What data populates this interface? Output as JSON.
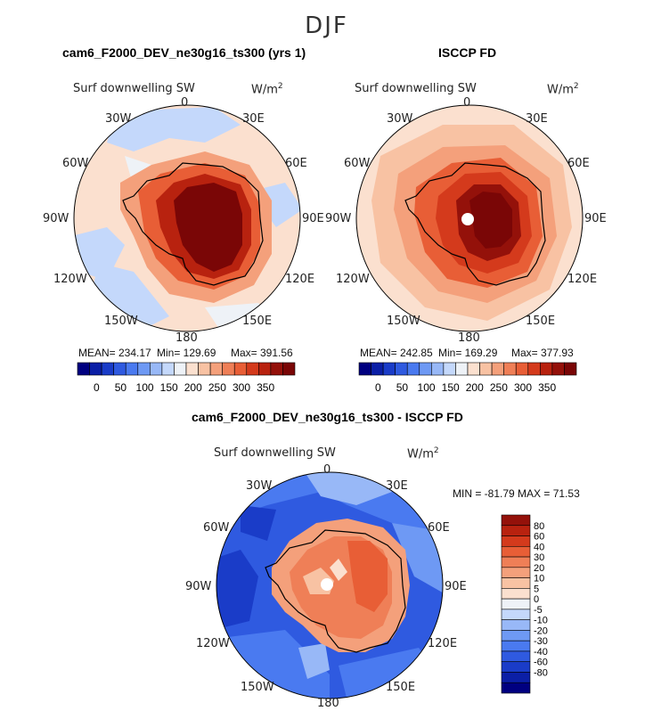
{
  "figure": {
    "season": "DJF"
  },
  "panels": [
    {
      "id": "model",
      "title": "cam6_F2000_DEV_ne30g16_ts300 (yrs 1)",
      "variable": "Surf downwelling SW",
      "units": "W/m",
      "units_exp": "2",
      "stats": {
        "mean": "MEAN= 234.17",
        "min": "Min= 129.69",
        "max": "Max= 391.56"
      },
      "lon_labels": [
        "0",
        "30E",
        "60E",
        "90E",
        "120E",
        "150E",
        "180",
        "150W",
        "120W",
        "90W",
        "60W",
        "30W"
      ]
    },
    {
      "id": "obs",
      "title": "ISCCP FD",
      "variable": "Surf downwelling SW",
      "units": "W/m",
      "units_exp": "2",
      "stats": {
        "mean": "MEAN= 242.85",
        "min": "Min= 169.29",
        "max": "Max= 377.93"
      },
      "lon_labels": [
        "0",
        "30E",
        "60E",
        "90E",
        "120E",
        "150E",
        "180",
        "150W",
        "120W",
        "90W",
        "60W",
        "30W"
      ]
    },
    {
      "id": "diff",
      "title": "cam6_F2000_DEV_ne30g16_ts300 - ISCCP FD",
      "variable": "Surf downwelling SW",
      "units": "W/m",
      "units_exp": "2",
      "stats": {
        "minmax": "MIN = -81.79 MAX =  71.53"
      },
      "lon_labels": [
        "0",
        "30E",
        "60E",
        "90E",
        "120E",
        "150E",
        "180",
        "150W",
        "120W",
        "90W",
        "60W",
        "30W"
      ]
    }
  ],
  "colorbar_abs": {
    "colors": [
      "#000080",
      "#0b1fa6",
      "#1a3cc8",
      "#2f5ae0",
      "#4a7af0",
      "#6e99f4",
      "#98b8f7",
      "#c4d8fb",
      "#eef2f7",
      "#fbe0cf",
      "#f8c2a3",
      "#f4a07b",
      "#ef7f57",
      "#e85e36",
      "#d43a1c",
      "#b8220f",
      "#94110a",
      "#7a0606"
    ],
    "ticks": [
      "0",
      "50",
      "100",
      "150",
      "200",
      "250",
      "300",
      "350"
    ]
  },
  "colorbar_diff": {
    "colors": [
      "#000080",
      "#0b1fa6",
      "#1a3cc8",
      "#2f5ae0",
      "#4a7af0",
      "#6e99f4",
      "#98b8f7",
      "#c4d8fb",
      "#eef2f7",
      "#fbe0cf",
      "#f8c2a3",
      "#f4a07b",
      "#ef7f57",
      "#e85e36",
      "#d43a1c",
      "#b8220f",
      "#94110a"
    ],
    "ticks": [
      "80",
      "60",
      "40",
      "30",
      "20",
      "10",
      "5",
      "0",
      "-5",
      "-10",
      "-20",
      "-30",
      "-40",
      "-60",
      "-80"
    ]
  }
}
